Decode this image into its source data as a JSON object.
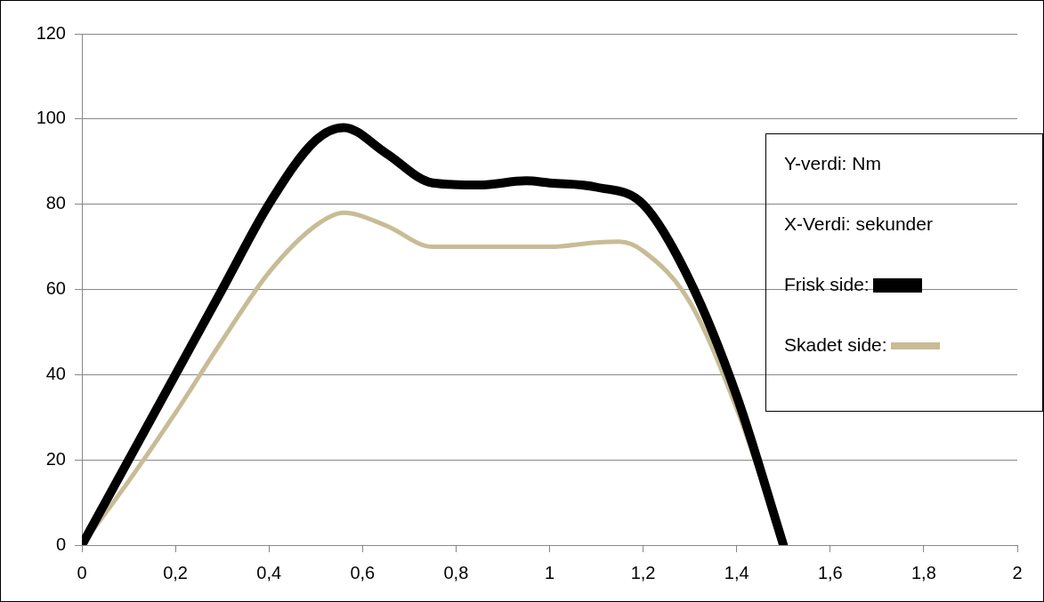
{
  "chart_data": {
    "type": "line",
    "annotations": [
      "Y-verdi: Nm",
      "X-Verdi: sekunder"
    ],
    "xlim": [
      0,
      2
    ],
    "xticks": [
      0,
      {
        "value": 0.2,
        "label": "0,2"
      },
      {
        "value": 0.4,
        "label": "0,4"
      },
      {
        "value": 0.6,
        "label": "0,6"
      },
      {
        "value": 0.8,
        "label": "0,8"
      },
      1,
      {
        "value": 1.2,
        "label": "1,2"
      },
      {
        "value": 1.4,
        "label": "1,4"
      },
      {
        "value": 1.6,
        "label": "1,6"
      },
      {
        "value": 1.8,
        "label": "1,8"
      },
      2
    ],
    "ylim": [
      0,
      120
    ],
    "yticks": [
      0,
      20,
      40,
      60,
      80,
      100,
      120
    ],
    "grid": "y",
    "legend": "right",
    "marker": "none",
    "series": [
      {
        "name": "Frisk side:",
        "color": "#000000",
        "x": [
          0,
          0.1,
          0.2,
          0.3,
          0.4,
          0.5,
          0.56,
          0.65,
          0.75,
          0.85,
          0.95,
          1.0,
          1.1,
          1.2,
          1.3,
          1.4,
          1.5
        ],
        "values": [
          0,
          20,
          40,
          60,
          80,
          95,
          98,
          92,
          85,
          84.5,
          85.5,
          85,
          84,
          80,
          62,
          35,
          0
        ]
      },
      {
        "name": "Skadet side:",
        "color": "#c8bc96",
        "x": [
          0,
          0.1,
          0.2,
          0.3,
          0.4,
          0.5,
          0.56,
          0.65,
          0.75,
          0.85,
          0.95,
          1.0,
          1.1,
          1.15,
          1.2,
          1.3,
          1.4,
          1.5
        ],
        "values": [
          0,
          15,
          31,
          48,
          64,
          75,
          78,
          75,
          70,
          70,
          70,
          70,
          71,
          71.2,
          69,
          57,
          32,
          0
        ]
      }
    ]
  }
}
